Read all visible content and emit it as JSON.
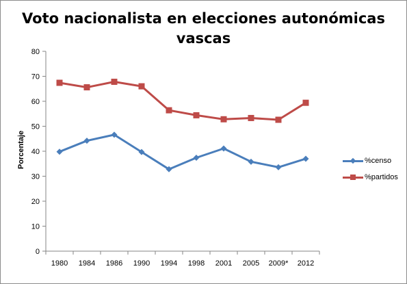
{
  "chart_data": {
    "type": "line",
    "title": "Voto nacionalista en elecciones autonómicas vascas",
    "ylabel": "Porcentaje",
    "xlabel": "",
    "categories": [
      "1980",
      "1984",
      "1986",
      "1990",
      "1994",
      "1998",
      "2001",
      "2005",
      "2009*",
      "2012"
    ],
    "ylim": [
      0,
      80
    ],
    "yticks": [
      0,
      10,
      20,
      30,
      40,
      50,
      60,
      70,
      80
    ],
    "grid": false,
    "legend_position": "right",
    "series": [
      {
        "name": "%censo",
        "color": "#4a7ebb",
        "marker": "diamond",
        "values": [
          39.8,
          44.2,
          46.6,
          39.7,
          32.8,
          37.4,
          41.1,
          35.8,
          33.6,
          37.0
        ]
      },
      {
        "name": "%partidos",
        "color": "#be4b48",
        "marker": "square",
        "values": [
          67.4,
          65.6,
          67.8,
          66.0,
          56.4,
          54.4,
          52.8,
          53.3,
          52.6,
          59.4
        ]
      }
    ]
  }
}
